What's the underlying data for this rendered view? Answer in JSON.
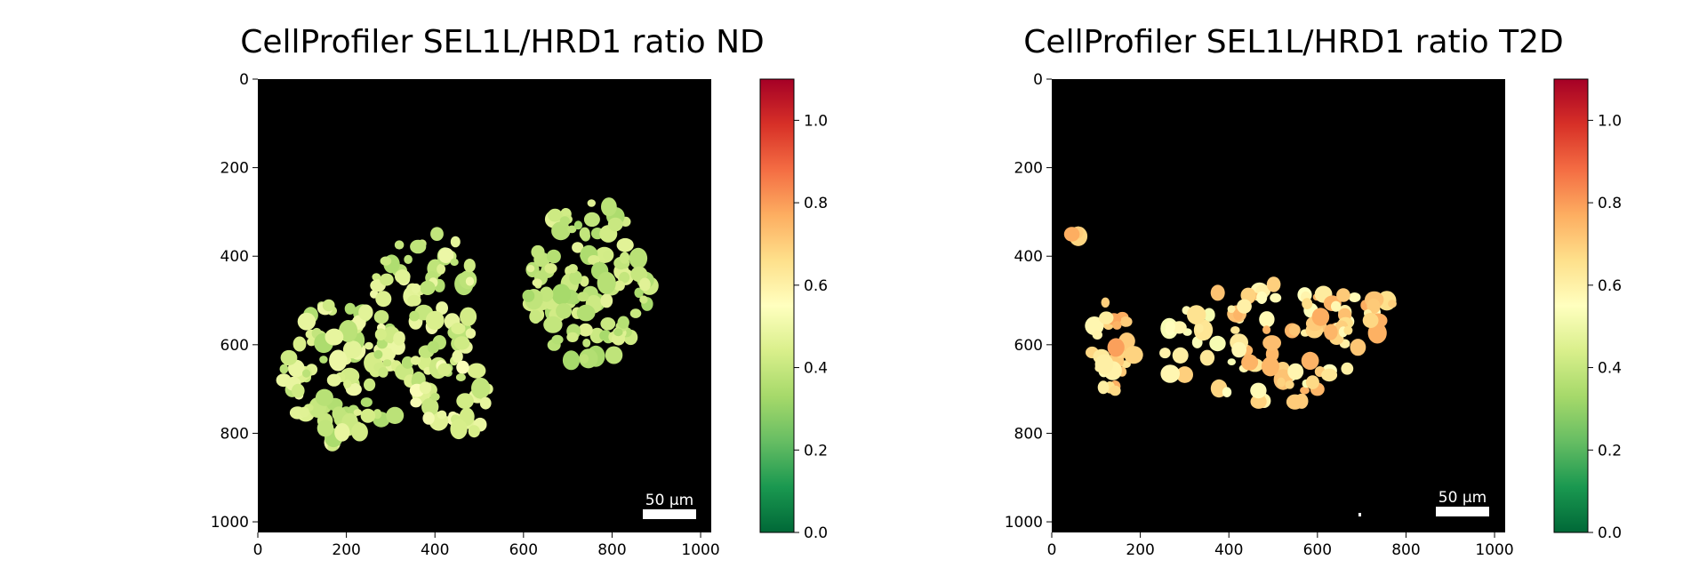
{
  "chart_data": [
    {
      "type": "heatmap",
      "title": "CellProfiler SEL1L/HRD1 ratio ND",
      "xlim": [
        0,
        1024
      ],
      "ylim": [
        1024,
        0
      ],
      "x_ticks": [
        "0",
        "200",
        "400",
        "600",
        "800",
        "1000"
      ],
      "y_ticks": [
        "0",
        "200",
        "400",
        "600",
        "800",
        "1000"
      ],
      "scale_bar": "50 µm",
      "background": "#000000",
      "colormap": "RdYlGn_r",
      "colorbar": {
        "min": 0.0,
        "max": 1.1,
        "ticks": [
          "0.0",
          "0.2",
          "0.4",
          "0.6",
          "0.8",
          "1.0"
        ]
      },
      "islets": [
        {
          "cx": 195,
          "cy": 665,
          "rx": 140,
          "ry": 170,
          "n": 95,
          "mean": 0.42,
          "spread": 0.08,
          "seed": 11
        },
        {
          "cx": 375,
          "cy": 520,
          "rx": 120,
          "ry": 200,
          "n": 80,
          "mean": 0.43,
          "spread": 0.08,
          "seed": 23
        },
        {
          "cx": 440,
          "cy": 730,
          "rx": 85,
          "ry": 95,
          "n": 30,
          "mean": 0.46,
          "spread": 0.08,
          "seed": 31
        },
        {
          "cx": 745,
          "cy": 460,
          "rx": 140,
          "ry": 185,
          "n": 110,
          "mean": 0.4,
          "spread": 0.07,
          "seed": 47
        }
      ]
    },
    {
      "type": "heatmap",
      "title": "CellProfiler SEL1L/HRD1 ratio T2D",
      "xlim": [
        0,
        1024
      ],
      "ylim": [
        1024,
        0
      ],
      "x_ticks": [
        "0",
        "200",
        "400",
        "600",
        "800",
        "1000"
      ],
      "y_ticks": [
        "0",
        "200",
        "400",
        "600",
        "800",
        "1000"
      ],
      "scale_bar": "50 µm",
      "background": "#000000",
      "colormap": "RdYlGn_r",
      "colorbar": {
        "min": 0.0,
        "max": 1.1,
        "ticks": [
          "0.0",
          "0.2",
          "0.4",
          "0.6",
          "0.8",
          "1.0"
        ]
      },
      "islets": [
        {
          "cx": 140,
          "cy": 600,
          "rx": 50,
          "ry": 110,
          "n": 30,
          "mean": 0.68,
          "spread": 0.12,
          "seed": 5
        },
        {
          "cx": 470,
          "cy": 600,
          "rx": 230,
          "ry": 140,
          "n": 85,
          "mean": 0.64,
          "spread": 0.12,
          "seed": 17
        },
        {
          "cx": 690,
          "cy": 520,
          "rx": 90,
          "ry": 90,
          "n": 25,
          "mean": 0.66,
          "spread": 0.12,
          "seed": 29
        },
        {
          "cx": 60,
          "cy": 345,
          "rx": 20,
          "ry": 10,
          "n": 3,
          "mean": 0.72,
          "spread": 0.06,
          "seed": 41
        }
      ]
    }
  ]
}
